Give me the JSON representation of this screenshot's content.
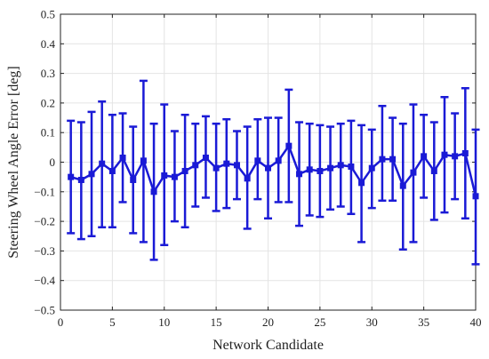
{
  "chart_data": {
    "type": "scatter",
    "title": "",
    "xlabel": "Network Candidate",
    "ylabel": "Steering Wheel Angle Error [deg]",
    "xlim": [
      0,
      40
    ],
    "ylim": [
      -0.5,
      0.5
    ],
    "xticks": [
      0,
      5,
      10,
      15,
      20,
      25,
      30,
      35,
      40
    ],
    "yticks": [
      -0.5,
      -0.4,
      -0.3,
      -0.2,
      -0.1,
      0,
      0.1,
      0.2,
      0.3,
      0.4,
      0.5
    ],
    "xtick_labels": [
      "0",
      "5",
      "10",
      "15",
      "20",
      "25",
      "30",
      "35",
      "40"
    ],
    "ytick_labels": [
      "−0.5",
      "−0.4",
      "−0.3",
      "−0.2",
      "−0.1",
      "0",
      "0.1",
      "0.2",
      "0.3",
      "0.4",
      "0.5"
    ],
    "grid": true,
    "legend": "none",
    "color": "#1a1ad6",
    "series": [
      {
        "x": [
          1,
          2,
          3,
          4,
          5,
          6,
          7,
          8,
          9,
          10,
          11,
          12,
          13,
          14,
          15,
          16,
          17,
          18,
          19,
          20,
          21,
          22,
          23,
          24,
          25,
          26,
          27,
          28,
          29,
          30,
          31,
          32,
          33,
          34,
          35,
          36,
          37,
          38,
          39,
          40
        ],
        "mean": [
          -0.05,
          -0.06,
          -0.04,
          -0.005,
          -0.03,
          0.015,
          -0.06,
          0.005,
          -0.1,
          -0.045,
          -0.05,
          -0.03,
          -0.01,
          0.015,
          -0.02,
          -0.005,
          -0.01,
          -0.055,
          0.005,
          -0.02,
          0.005,
          0.055,
          -0.04,
          -0.025,
          -0.03,
          -0.02,
          -0.01,
          -0.015,
          -0.07,
          -0.02,
          0.01,
          0.01,
          -0.08,
          -0.035,
          0.02,
          -0.03,
          0.025,
          0.02,
          0.03,
          -0.115
        ],
        "upper": [
          0.14,
          0.135,
          0.17,
          0.205,
          0.16,
          0.165,
          0.12,
          0.275,
          0.13,
          0.195,
          0.105,
          0.16,
          0.13,
          0.155,
          0.13,
          0.145,
          0.105,
          0.12,
          0.145,
          0.15,
          0.15,
          0.245,
          0.135,
          0.13,
          0.125,
          0.12,
          0.13,
          0.14,
          0.125,
          0.11,
          0.19,
          0.15,
          0.13,
          0.195,
          0.16,
          0.135,
          0.22,
          0.165,
          0.25,
          0.11
        ],
        "lower": [
          -0.24,
          -0.26,
          -0.25,
          -0.22,
          -0.22,
          -0.135,
          -0.24,
          -0.27,
          -0.33,
          -0.28,
          -0.2,
          -0.22,
          -0.15,
          -0.12,
          -0.165,
          -0.155,
          -0.125,
          -0.225,
          -0.125,
          -0.19,
          -0.135,
          -0.135,
          -0.215,
          -0.18,
          -0.185,
          -0.16,
          -0.15,
          -0.175,
          -0.27,
          -0.155,
          -0.13,
          -0.13,
          -0.295,
          -0.27,
          -0.12,
          -0.195,
          -0.17,
          -0.125,
          -0.19,
          -0.345
        ]
      }
    ]
  }
}
